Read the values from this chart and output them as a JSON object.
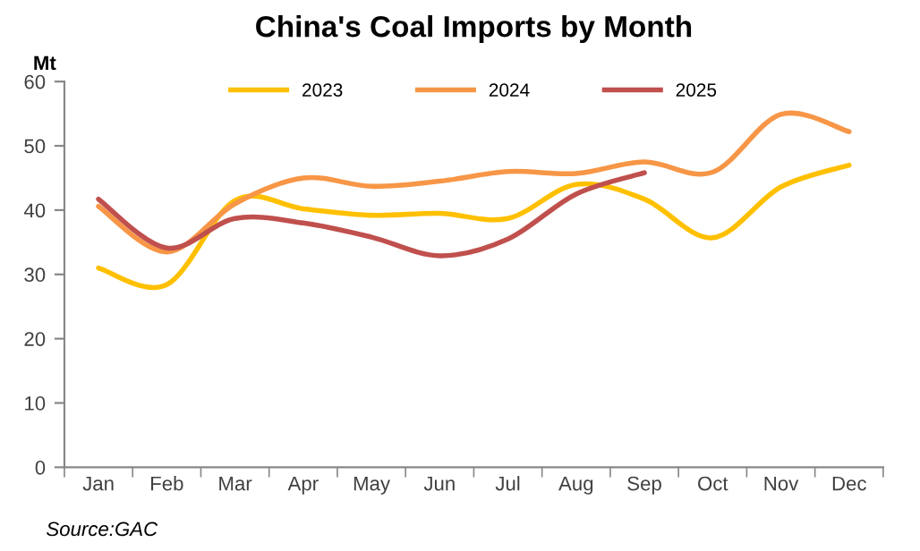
{
  "chart_data": {
    "type": "line",
    "title": "China's Coal Imports by Month",
    "ylabel": "Mt",
    "categories": [
      "Jan",
      "Feb",
      "Mar",
      "Apr",
      "May",
      "Jun",
      "Jul",
      "Aug",
      "Sep",
      "Oct",
      "Nov",
      "Dec"
    ],
    "series": [
      {
        "name": "2023",
        "color": "#ffc000",
        "values": [
          31.0,
          28.4,
          41.5,
          40.2,
          39.2,
          39.5,
          38.7,
          44.0,
          41.7,
          35.7,
          43.6,
          47.0
        ]
      },
      {
        "name": "2024",
        "color": "#f79646",
        "values": [
          40.6,
          33.5,
          41.0,
          45.0,
          43.7,
          44.5,
          46.0,
          45.7,
          47.5,
          45.9,
          54.9,
          52.2
        ]
      },
      {
        "name": "2025",
        "color": "#c0504d",
        "values": [
          41.7,
          34.1,
          38.7,
          38.0,
          35.8,
          32.9,
          35.5,
          42.5,
          45.8,
          null,
          null,
          null
        ]
      }
    ],
    "ylim": [
      0,
      60
    ],
    "yticks": [
      0,
      10,
      20,
      30,
      40,
      50,
      60
    ],
    "grid": false,
    "legend": "top",
    "marker": "none",
    "line_style": "solid",
    "annotations": [
      "Source:GAC"
    ]
  }
}
